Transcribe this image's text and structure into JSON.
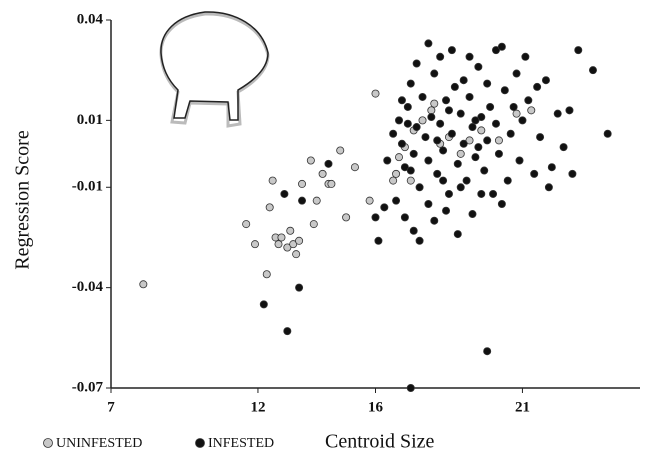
{
  "chart_data": {
    "type": "scatter",
    "x_label": "Centroid Size",
    "y_label": "Regression Score",
    "xlim": [
      7,
      25
    ],
    "xticks": [
      7,
      12,
      16,
      21
    ],
    "ylim": [
      -0.07,
      0.04
    ],
    "yticks": [
      -0.07,
      -0.04,
      -0.01,
      0.01,
      0.04
    ],
    "series": [
      {
        "name": "UNINFESTED",
        "color": "#c8c8c8",
        "x": [
          8.1,
          11.6,
          11.9,
          12.4,
          12.5,
          12.6,
          12.8,
          12.7,
          13.0,
          13.2,
          13.1,
          13.4,
          13.3,
          12.3,
          13.5,
          13.8,
          14.0,
          13.9,
          14.2,
          14.4,
          14.5,
          15.0,
          15.3,
          15.8,
          16.0,
          16.7,
          16.8,
          17.0,
          17.3,
          17.6,
          17.9,
          18.2,
          18.5,
          18.9,
          19.2,
          19.6,
          20.2,
          20.8,
          21.3,
          18.0,
          17.2,
          16.6,
          14.8
        ],
        "values": [
          -0.039,
          -0.021,
          -0.027,
          -0.016,
          -0.008,
          -0.025,
          -0.025,
          -0.027,
          -0.028,
          -0.027,
          -0.023,
          -0.026,
          -0.03,
          -0.036,
          -0.009,
          -0.002,
          -0.014,
          -0.021,
          -0.006,
          -0.009,
          -0.009,
          -0.019,
          -0.004,
          -0.014,
          0.018,
          -0.006,
          -0.001,
          0.002,
          0.007,
          0.01,
          0.013,
          0.003,
          0.005,
          0.0,
          0.004,
          0.007,
          0.004,
          0.012,
          0.013,
          0.015,
          -0.008,
          -0.008,
          0.001
        ]
      },
      {
        "name": "INFESTED",
        "color": "#111111",
        "x": [
          16.6,
          16.8,
          16.9,
          17.0,
          17.1,
          17.2,
          17.3,
          17.4,
          17.5,
          17.6,
          17.7,
          17.8,
          17.9,
          18.0,
          18.1,
          18.2,
          18.3,
          18.4,
          18.5,
          18.6,
          18.7,
          18.8,
          18.9,
          19.0,
          19.1,
          19.2,
          19.3,
          19.4,
          19.5,
          19.6,
          19.7,
          19.8,
          19.9,
          20.0,
          20.1,
          20.2,
          20.4,
          20.5,
          20.6,
          20.8,
          20.9,
          21.0,
          21.2,
          21.4,
          21.6,
          21.8,
          22.0,
          22.2,
          22.4,
          16.7,
          17.0,
          17.3,
          17.5,
          17.8,
          18.0,
          18.4,
          18.8,
          19.3,
          19.6,
          16.3,
          16.0,
          16.1,
          17.8,
          18.6,
          19.2,
          20.1,
          21.1,
          17.4,
          18.2,
          19.8,
          18.9,
          17.2,
          18.5,
          19.5,
          20.7,
          21.9,
          22.7,
          21.5,
          17.1,
          18.3,
          19.0,
          20.3,
          16.9,
          18.1,
          19.4,
          12.2,
          13.0,
          13.4,
          12.9,
          13.5,
          14.4,
          16.4,
          17.2,
          19.8,
          23.9,
          23.4,
          22.9,
          22.6,
          20.3
        ],
        "values": [
          0.006,
          0.01,
          0.003,
          -0.004,
          0.014,
          0.021,
          0.0,
          0.008,
          -0.01,
          0.017,
          0.005,
          -0.002,
          0.011,
          0.024,
          -0.006,
          0.009,
          0.001,
          0.016,
          -0.012,
          0.006,
          0.02,
          -0.003,
          0.012,
          0.003,
          -0.008,
          0.017,
          0.008,
          -0.001,
          0.026,
          0.011,
          -0.005,
          0.004,
          0.014,
          -0.012,
          0.009,
          0.0,
          0.019,
          -0.008,
          0.006,
          0.024,
          -0.002,
          0.01,
          0.016,
          -0.006,
          0.005,
          0.022,
          -0.004,
          0.012,
          0.002,
          -0.014,
          -0.019,
          -0.023,
          -0.026,
          -0.015,
          -0.02,
          -0.017,
          -0.024,
          -0.018,
          -0.012,
          -0.016,
          -0.019,
          -0.026,
          0.033,
          0.031,
          0.029,
          0.031,
          0.029,
          0.027,
          0.029,
          0.021,
          -0.01,
          -0.005,
          0.013,
          0.002,
          0.014,
          -0.01,
          -0.006,
          0.02,
          0.009,
          -0.008,
          0.022,
          -0.015,
          0.016,
          0.004,
          0.01,
          -0.045,
          -0.053,
          -0.04,
          -0.012,
          -0.014,
          -0.003,
          -0.002,
          -0.07,
          -0.059,
          0.006,
          0.025,
          0.031,
          0.013,
          0.032
        ]
      }
    ]
  }
}
